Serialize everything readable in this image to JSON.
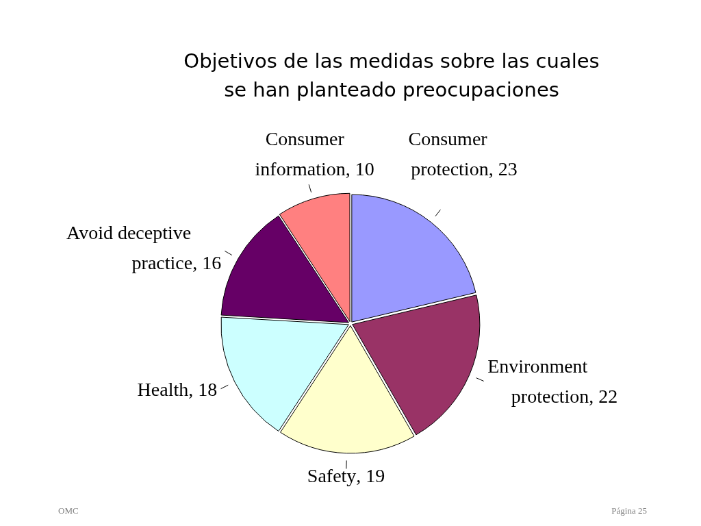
{
  "chart_data": {
    "type": "pie",
    "title": "Objetivos de las medidas sobre las cuales se han planteado preocupaciones",
    "categories": [
      "Consumer protection",
      "Environment protection",
      "Safety",
      "Health",
      "Avoid deceptive practice",
      "Consumer information"
    ],
    "values": [
      23,
      22,
      19,
      18,
      16,
      10
    ],
    "value_labels": [
      ", 23",
      ", 22",
      ", 19",
      ", 18",
      ", 16",
      ", 10"
    ],
    "colors": [
      "#9999ff",
      "#993366",
      "#ffffcc",
      "#ccffff",
      "#660066",
      "#ff8080"
    ],
    "annotations": [
      "OMC",
      "Página 25"
    ]
  }
}
